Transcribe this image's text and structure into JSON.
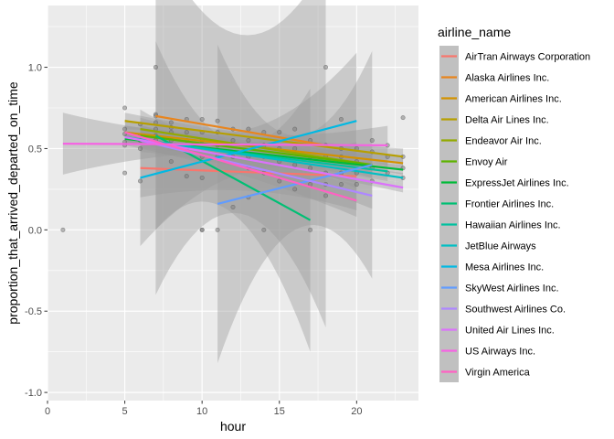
{
  "chart_data": {
    "type": "scatter",
    "title": "",
    "xlabel": "hour",
    "ylabel": "proportion_that_arrived_departed_on_time",
    "xlim": [
      0,
      24
    ],
    "ylim": [
      -1.05,
      1.38
    ],
    "x_ticks": [
      0,
      5,
      10,
      15,
      20
    ],
    "y_ticks": [
      -1.0,
      -0.5,
      0.0,
      0.5,
      1.0
    ],
    "x_tick_labels": [
      "0",
      "5",
      "10",
      "15",
      "20"
    ],
    "y_tick_labels": [
      "-1.0",
      "-0.5",
      "0.0",
      "0.5",
      "1.0"
    ],
    "grid": true,
    "legend_position": "right",
    "legend_title": "airline_name",
    "points": [
      {
        "x": 1,
        "y": 0.0
      },
      {
        "x": 5,
        "y": 0.75
      },
      {
        "x": 5,
        "y": 0.62
      },
      {
        "x": 5,
        "y": 0.59
      },
      {
        "x": 5,
        "y": 0.54
      },
      {
        "x": 5,
        "y": 0.52
      },
      {
        "x": 5,
        "y": 0.35
      },
      {
        "x": 6,
        "y": 0.65
      },
      {
        "x": 6,
        "y": 0.58
      },
      {
        "x": 6,
        "y": 0.55
      },
      {
        "x": 6,
        "y": 0.5
      },
      {
        "x": 6,
        "y": 0.3
      },
      {
        "x": 7,
        "y": 1.0
      },
      {
        "x": 7,
        "y": 0.71
      },
      {
        "x": 7,
        "y": 0.7
      },
      {
        "x": 7,
        "y": 0.66
      },
      {
        "x": 7,
        "y": 0.62
      },
      {
        "x": 7,
        "y": 0.58
      },
      {
        "x": 7,
        "y": 0.55
      },
      {
        "x": 8,
        "y": 0.66
      },
      {
        "x": 8,
        "y": 0.63
      },
      {
        "x": 8,
        "y": 0.6
      },
      {
        "x": 8,
        "y": 0.55
      },
      {
        "x": 8,
        "y": 0.52
      },
      {
        "x": 8,
        "y": 0.42
      },
      {
        "x": 9,
        "y": 0.68
      },
      {
        "x": 9,
        "y": 0.6
      },
      {
        "x": 9,
        "y": 0.55
      },
      {
        "x": 9,
        "y": 0.5
      },
      {
        "x": 9,
        "y": 0.33
      },
      {
        "x": 10,
        "y": 0.68
      },
      {
        "x": 10,
        "y": 0.6
      },
      {
        "x": 10,
        "y": 0.55
      },
      {
        "x": 10,
        "y": 0.45
      },
      {
        "x": 10,
        "y": 0.32
      },
      {
        "x": 10,
        "y": 0.0
      },
      {
        "x": 10,
        "y": 0.0
      },
      {
        "x": 11,
        "y": 0.67
      },
      {
        "x": 11,
        "y": 0.6
      },
      {
        "x": 11,
        "y": 0.52
      },
      {
        "x": 11,
        "y": 0.45
      },
      {
        "x": 11,
        "y": 0.0
      },
      {
        "x": 12,
        "y": 0.62
      },
      {
        "x": 12,
        "y": 0.55
      },
      {
        "x": 12,
        "y": 0.45
      },
      {
        "x": 12,
        "y": 0.14
      },
      {
        "x": 13,
        "y": 0.62
      },
      {
        "x": 13,
        "y": 0.55
      },
      {
        "x": 13,
        "y": 0.45
      },
      {
        "x": 13,
        "y": 0.38
      },
      {
        "x": 13,
        "y": 0.2
      },
      {
        "x": 14,
        "y": 0.6
      },
      {
        "x": 14,
        "y": 0.52
      },
      {
        "x": 14,
        "y": 0.45
      },
      {
        "x": 14,
        "y": 0.35
      },
      {
        "x": 14,
        "y": 0.0
      },
      {
        "x": 15,
        "y": 0.6
      },
      {
        "x": 15,
        "y": 0.5
      },
      {
        "x": 15,
        "y": 0.42
      },
      {
        "x": 15,
        "y": 0.3
      },
      {
        "x": 16,
        "y": 0.62
      },
      {
        "x": 16,
        "y": 0.5
      },
      {
        "x": 16,
        "y": 0.4
      },
      {
        "x": 16,
        "y": 0.25
      },
      {
        "x": 17,
        "y": 0.55
      },
      {
        "x": 17,
        "y": 0.45
      },
      {
        "x": 17,
        "y": 0.38
      },
      {
        "x": 17,
        "y": 0.28
      },
      {
        "x": 17,
        "y": 0.0
      },
      {
        "x": 18,
        "y": 1.0
      },
      {
        "x": 18,
        "y": 0.52
      },
      {
        "x": 18,
        "y": 0.45
      },
      {
        "x": 18,
        "y": 0.35
      },
      {
        "x": 18,
        "y": 0.28
      },
      {
        "x": 18,
        "y": 0.21
      },
      {
        "x": 19,
        "y": 0.68
      },
      {
        "x": 19,
        "y": 0.5
      },
      {
        "x": 19,
        "y": 0.45
      },
      {
        "x": 19,
        "y": 0.35
      },
      {
        "x": 19,
        "y": 0.28
      },
      {
        "x": 20,
        "y": 0.5
      },
      {
        "x": 20,
        "y": 0.42
      },
      {
        "x": 20,
        "y": 0.35
      },
      {
        "x": 20,
        "y": 0.28
      },
      {
        "x": 21,
        "y": 0.55
      },
      {
        "x": 21,
        "y": 0.48
      },
      {
        "x": 21,
        "y": 0.38
      },
      {
        "x": 21,
        "y": 0.3
      },
      {
        "x": 22,
        "y": 0.52
      },
      {
        "x": 22,
        "y": 0.45
      },
      {
        "x": 22,
        "y": 0.35
      },
      {
        "x": 23,
        "y": 0.69
      },
      {
        "x": 23,
        "y": 0.45
      },
      {
        "x": 23,
        "y": 0.38
      },
      {
        "x": 23,
        "y": 0.32
      }
    ],
    "series": [
      {
        "name": "AirTran Airways Corporation",
        "color": "#F8766D",
        "x": [
          6,
          20
        ],
        "y": [
          0.38,
          0.33
        ],
        "band": [
          [
            6,
            0.2,
            0.56
          ],
          [
            13,
            0.24,
            0.46
          ],
          [
            20,
            0.12,
            0.54
          ]
        ]
      },
      {
        "name": "Alaska Airlines Inc.",
        "color": "#E8851E",
        "x": [
          7,
          18
        ],
        "y": [
          0.7,
          0.52
        ],
        "band": [
          [
            7,
            -0.4,
            1.8
          ],
          [
            12,
            0.1,
            1.2
          ],
          [
            18,
            -0.6,
            1.64
          ]
        ]
      },
      {
        "name": "American Airlines Inc.",
        "color": "#D39200",
        "x": [
          5,
          23
        ],
        "y": [
          0.6,
          0.41
        ],
        "band": [
          [
            5,
            0.56,
            0.64
          ],
          [
            14,
            0.5,
            0.54
          ],
          [
            23,
            0.37,
            0.45
          ]
        ]
      },
      {
        "name": "Delta Air Lines Inc.",
        "color": "#B79F00",
        "x": [
          5,
          23
        ],
        "y": [
          0.67,
          0.45
        ],
        "band": [
          [
            5,
            0.62,
            0.72
          ],
          [
            14,
            0.54,
            0.58
          ],
          [
            23,
            0.4,
            0.5
          ]
        ]
      },
      {
        "name": "Endeavor Air Inc.",
        "color": "#93AA00",
        "x": [
          6,
          21
        ],
        "y": [
          0.62,
          0.4
        ],
        "band": [
          [
            6,
            0.55,
            0.69
          ],
          [
            13,
            0.48,
            0.54
          ],
          [
            21,
            0.32,
            0.48
          ]
        ]
      },
      {
        "name": "Envoy Air",
        "color": "#5EB300",
        "x": [
          6,
          21
        ],
        "y": [
          0.58,
          0.4
        ],
        "band": [
          [
            6,
            0.52,
            0.64
          ],
          [
            13,
            0.47,
            0.53
          ],
          [
            21,
            0.34,
            0.46
          ]
        ]
      },
      {
        "name": "ExpressJet Airlines Inc.",
        "color": "#00BA38",
        "x": [
          5,
          23
        ],
        "y": [
          0.56,
          0.37
        ],
        "band": [
          [
            5,
            0.53,
            0.59
          ],
          [
            14,
            0.46,
            0.48
          ],
          [
            23,
            0.34,
            0.4
          ]
        ]
      },
      {
        "name": "Frontier Airlines Inc.",
        "color": "#00BF74",
        "x": [
          7,
          17
        ],
        "y": [
          0.58,
          0.06
        ],
        "band": [
          [
            7,
            0.0,
            1.16
          ],
          [
            12,
            0.1,
            0.54
          ],
          [
            17,
            -0.75,
            0.87
          ]
        ]
      },
      {
        "name": "Hawaiian Airlines Inc.",
        "color": "#00C19F",
        "x": [
          6,
          22
        ],
        "y": [
          0.55,
          0.36
        ],
        "band": [
          [
            6,
            0.5,
            0.6
          ],
          [
            14,
            0.42,
            0.48
          ],
          [
            22,
            0.3,
            0.42
          ]
        ]
      },
      {
        "name": "JetBlue Airways",
        "color": "#00BFC4",
        "x": [
          5,
          23
        ],
        "y": [
          0.57,
          0.32
        ],
        "band": [
          [
            5,
            0.54,
            0.6
          ],
          [
            14,
            0.43,
            0.47
          ],
          [
            23,
            0.29,
            0.35
          ]
        ]
      },
      {
        "name": "Mesa Airlines Inc.",
        "color": "#00B9E3",
        "x": [
          6,
          20
        ],
        "y": [
          0.32,
          0.67
        ],
        "band": [
          [
            6,
            -0.1,
            0.74
          ],
          [
            13,
            0.36,
            0.62
          ],
          [
            20,
            0.25,
            1.09
          ]
        ]
      },
      {
        "name": "SkyWest Airlines Inc.",
        "color": "#619CFF",
        "x": [
          11,
          21
        ],
        "y": [
          0.16,
          0.4
        ],
        "band": [
          [
            11,
            -0.82,
            1.14
          ],
          [
            16,
            0.0,
            0.58
          ],
          [
            21,
            -0.3,
            1.1
          ]
        ]
      },
      {
        "name": "Southwest Airlines Co.",
        "color": "#AE87FF",
        "x": [
          6,
          21
        ],
        "y": [
          0.55,
          0.21
        ],
        "band": [
          [
            6,
            0.48,
            0.62
          ],
          [
            13,
            0.36,
            0.44
          ],
          [
            21,
            0.13,
            0.29
          ]
        ]
      },
      {
        "name": "United Air Lines Inc.",
        "color": "#DB72FB",
        "x": [
          5,
          23
        ],
        "y": [
          0.57,
          0.26
        ],
        "band": [
          [
            5,
            0.54,
            0.6
          ],
          [
            14,
            0.4,
            0.44
          ],
          [
            23,
            0.23,
            0.29
          ]
        ]
      },
      {
        "name": "US Airways Inc.",
        "color": "#F564E3",
        "x": [
          1,
          22
        ],
        "y": [
          0.53,
          0.52
        ],
        "band": [
          [
            1,
            0.34,
            0.72
          ],
          [
            11,
            0.48,
            0.58
          ],
          [
            22,
            0.4,
            0.64
          ]
        ]
      },
      {
        "name": "Virgin America",
        "color": "#FF61C3",
        "x": [
          5,
          20
        ],
        "y": [
          0.6,
          0.18
        ],
        "band": [
          [
            5,
            0.52,
            0.68
          ],
          [
            12,
            0.34,
            0.46
          ],
          [
            20,
            0.08,
            0.28
          ]
        ]
      }
    ]
  }
}
